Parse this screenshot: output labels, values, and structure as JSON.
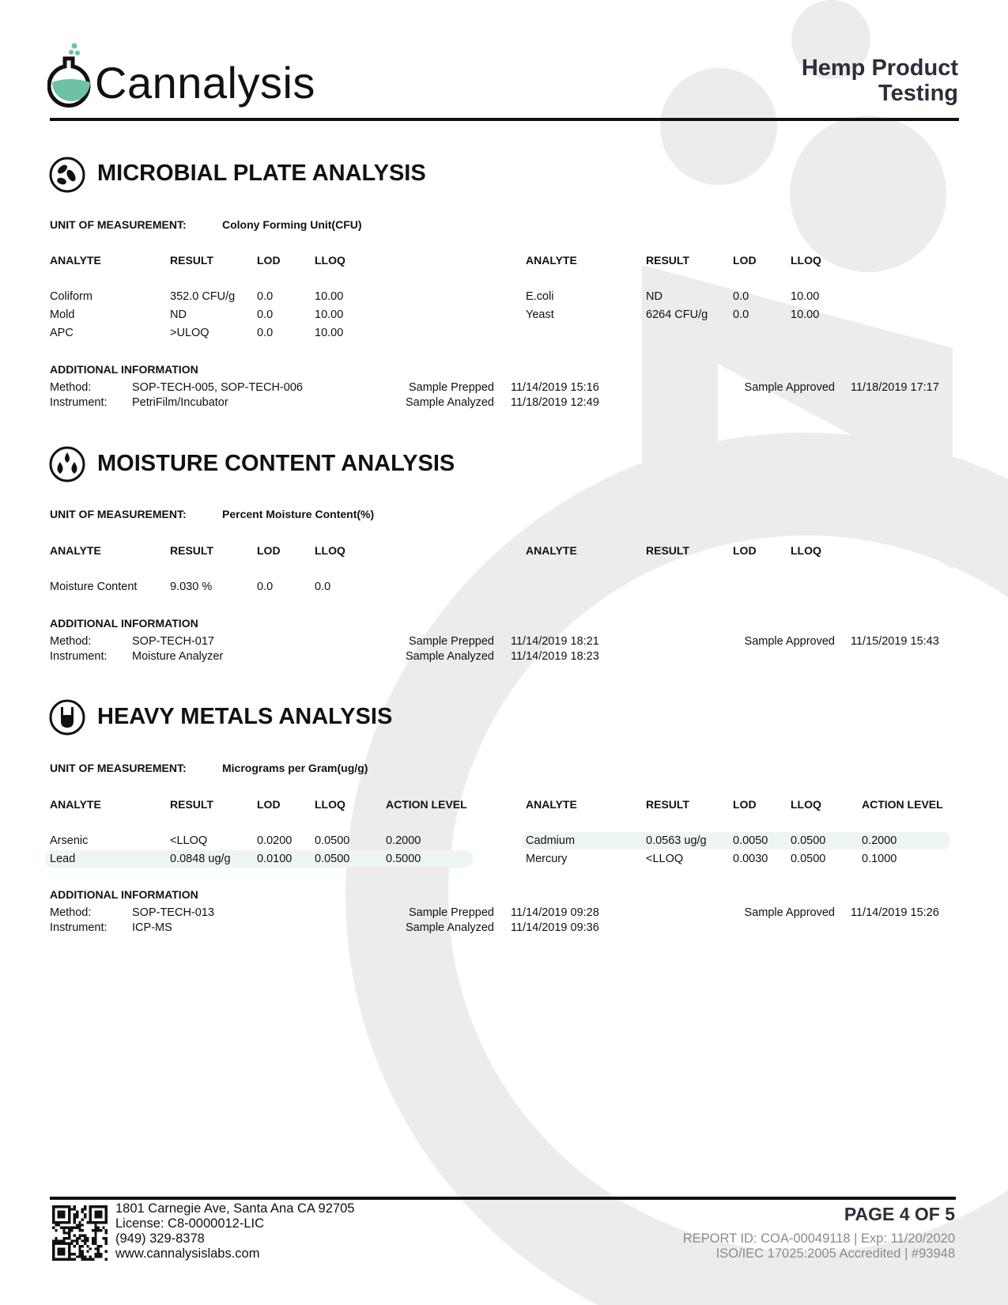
{
  "header": {
    "brand": "Cannalysis",
    "doc_title_line1": "Hemp Product",
    "doc_title_line2": "Testing",
    "brand_accent": "#6cc1a6"
  },
  "microbial": {
    "title": "MICROBIAL PLATE ANALYSIS",
    "icon": "bacteria-icon",
    "unit_label": "UNIT OF MEASUREMENT:",
    "unit": "Colony Forming Unit(CFU)",
    "columns": [
      "ANALYTE",
      "RESULT",
      "LOD",
      "LLOQ"
    ],
    "left_rows": [
      {
        "analyte": "Coliform",
        "result": "352.0 CFU/g",
        "lod": "0.0",
        "lloq": "10.00"
      },
      {
        "analyte": "Mold",
        "result": "ND",
        "lod": "0.0",
        "lloq": "10.00"
      },
      {
        "analyte": "APC",
        "result": ">ULOQ",
        "lod": "0.0",
        "lloq": "10.00"
      }
    ],
    "right_rows": [
      {
        "analyte": "E.coli",
        "result": "ND",
        "lod": "0.0",
        "lloq": "10.00"
      },
      {
        "analyte": "Yeast",
        "result": "6264 CFU/g",
        "lod": "0.0",
        "lloq": "10.00"
      }
    ],
    "info": {
      "heading": "ADDITIONAL INFORMATION",
      "method_label": "Method:",
      "method": "SOP-TECH-005, SOP-TECH-006",
      "instrument_label": "Instrument:",
      "instrument": "PetriFilm/Incubator",
      "prepped_label": "Sample Prepped",
      "prepped": "11/14/2019 15:16",
      "analyzed_label": "Sample Analyzed",
      "analyzed": "11/18/2019 12:49",
      "approved_label": "Sample Approved",
      "approved": "11/18/2019 17:17"
    }
  },
  "moisture": {
    "title": "MOISTURE CONTENT ANALYSIS",
    "icon": "water-drops-icon",
    "unit_label": "UNIT OF MEASUREMENT:",
    "unit": "Percent Moisture Content(%)",
    "columns": [
      "ANALYTE",
      "RESULT",
      "LOD",
      "LLOQ"
    ],
    "left_rows": [
      {
        "analyte": "Moisture Content",
        "result": "9.030 %",
        "lod": "0.0",
        "lloq": "0.0"
      }
    ],
    "info": {
      "heading": "ADDITIONAL INFORMATION",
      "method_label": "Method:",
      "method": "SOP-TECH-017",
      "instrument_label": "Instrument:",
      "instrument": "Moisture Analyzer",
      "prepped_label": "Sample Prepped",
      "prepped": "11/14/2019 18:21",
      "analyzed_label": "Sample Analyzed",
      "analyzed": "11/14/2019 18:23",
      "approved_label": "Sample Approved",
      "approved": "11/15/2019 15:43"
    }
  },
  "metals": {
    "title": "HEAVY METALS ANALYSIS",
    "icon": "rock-hand-icon",
    "unit_label": "UNIT OF MEASUREMENT:",
    "unit": "Micrograms per Gram(ug/g)",
    "columns": [
      "ANALYTE",
      "RESULT",
      "LOD",
      "LLOQ",
      "ACTION LEVEL"
    ],
    "left_rows": [
      {
        "analyte": "Arsenic",
        "result": "<LLOQ",
        "lod": "0.0200",
        "lloq": "0.0500",
        "action": "0.2000"
      },
      {
        "analyte": "Lead",
        "result": "0.0848 ug/g",
        "lod": "0.0100",
        "lloq": "0.0500",
        "action": "0.5000"
      }
    ],
    "right_rows": [
      {
        "analyte": "Cadmium",
        "result": "0.0563 ug/g",
        "lod": "0.0050",
        "lloq": "0.0500",
        "action": "0.2000"
      },
      {
        "analyte": "Mercury",
        "result": "<LLOQ",
        "lod": "0.0030",
        "lloq": "0.0500",
        "action": "0.1000"
      }
    ],
    "info": {
      "heading": "ADDITIONAL INFORMATION",
      "method_label": "Method:",
      "method": "SOP-TECH-013",
      "instrument_label": "Instrument:",
      "instrument": "ICP-MS",
      "prepped_label": "Sample Prepped",
      "prepped": "11/14/2019 09:28",
      "analyzed_label": "Sample Analyzed",
      "analyzed": "11/14/2019 09:36",
      "approved_label": "Sample Approved",
      "approved": "11/14/2019 15:26"
    }
  },
  "footer": {
    "address": "1801 Carnegie Ave, Santa Ana  CA 92705",
    "license": "License: C8-0000012-LIC",
    "phone": "(949) 329-8378",
    "website": "www.cannalysislabs.com",
    "page": "PAGE 4 OF 5",
    "report": "REPORT ID: COA-00049118 | Exp: 11/20/2020",
    "accreditation": "ISO/IEC 17025:2005 Accredited | #93948"
  }
}
